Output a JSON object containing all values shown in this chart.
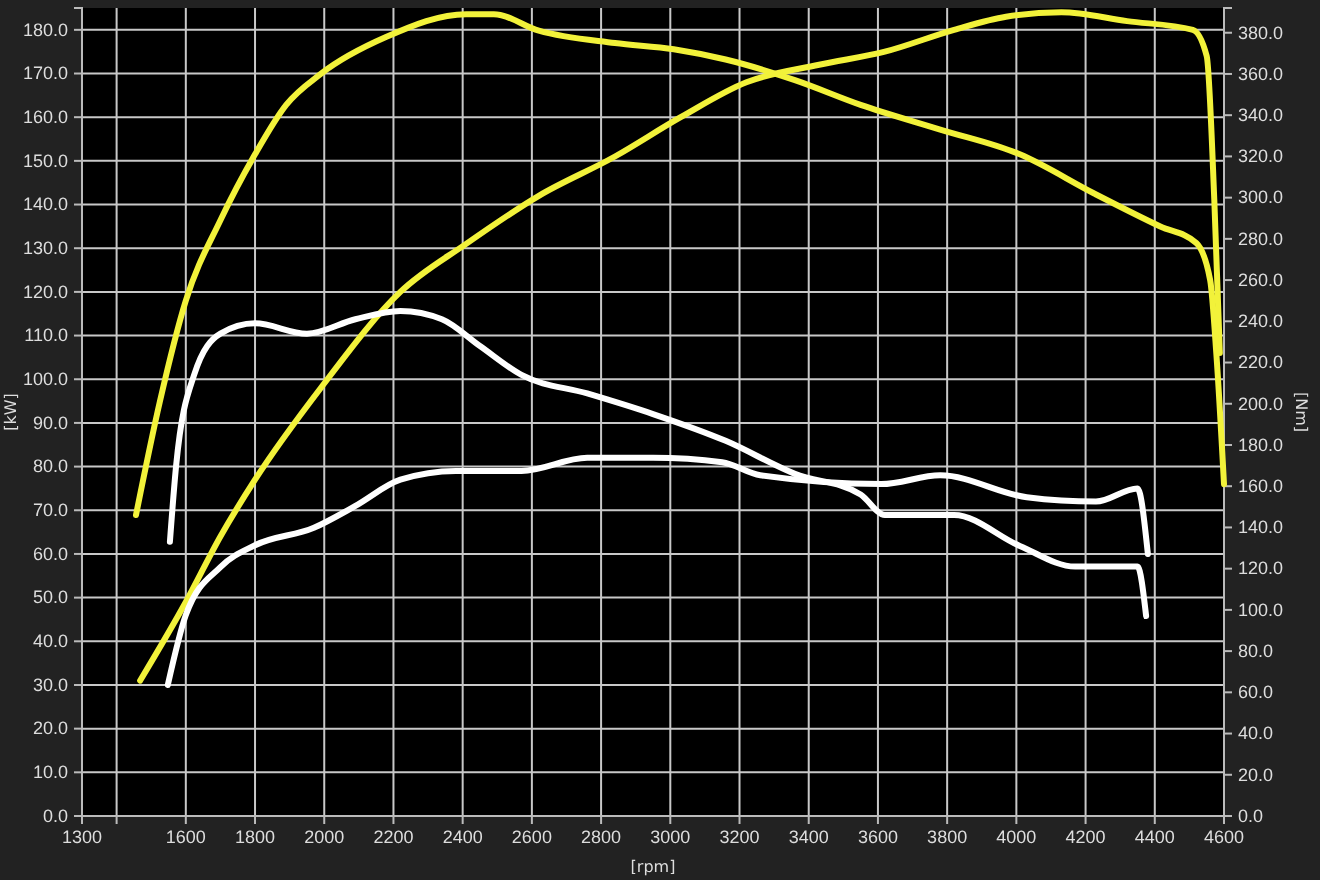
{
  "chart_data": {
    "type": "line",
    "xlabel": "[rpm]",
    "ylabel": "[kW]",
    "y2label": "[Nm]",
    "xlim": [
      1300,
      4600
    ],
    "xticks": [
      1300,
      {
        "value": 1400,
        "label": null
      },
      1600,
      1800,
      2000,
      2200,
      2400,
      2600,
      2800,
      3000,
      3200,
      3400,
      3600,
      3800,
      4000,
      4200,
      4400,
      4600
    ],
    "ylim": [
      0,
      185
    ],
    "yticks": [
      {
        "value": 0,
        "label": "0.0"
      },
      {
        "value": 10,
        "label": "10.0"
      },
      {
        "value": 20,
        "label": "20.0"
      },
      {
        "value": 30,
        "label": "30.0"
      },
      {
        "value": 40,
        "label": "40.0"
      },
      {
        "value": 50,
        "label": "50.0"
      },
      {
        "value": 60,
        "label": "60.0"
      },
      {
        "value": 70,
        "label": "70.0"
      },
      {
        "value": 80,
        "label": "80.0"
      },
      {
        "value": 90,
        "label": "90.0"
      },
      {
        "value": 100,
        "label": "100.0"
      },
      {
        "value": 110,
        "label": "110.0"
      },
      {
        "value": 120,
        "label": "120.0"
      },
      {
        "value": 130,
        "label": "130.0"
      },
      {
        "value": 140,
        "label": "140.0"
      },
      {
        "value": 150,
        "label": "150.0"
      },
      {
        "value": 160,
        "label": "160.0"
      },
      {
        "value": 170,
        "label": "170.0"
      },
      {
        "value": 180,
        "label": "180.0"
      }
    ],
    "y2lim": [
      0,
      392
    ],
    "y2ticks": [
      {
        "value": 0,
        "label": "0.0"
      },
      {
        "value": 20,
        "label": "20.0"
      },
      {
        "value": 40,
        "label": "40.0"
      },
      {
        "value": 60,
        "label": "60.0"
      },
      {
        "value": 80,
        "label": "80.0"
      },
      {
        "value": 100,
        "label": "100.0"
      },
      {
        "value": 120,
        "label": "120.0"
      },
      {
        "value": 140,
        "label": "140.0"
      },
      {
        "value": 160,
        "label": "160.0"
      },
      {
        "value": 180,
        "label": "180.0"
      },
      {
        "value": 200,
        "label": "200.0"
      },
      {
        "value": 220,
        "label": "220.0"
      },
      {
        "value": 240,
        "label": "240.0"
      },
      {
        "value": 260,
        "label": "260.0"
      },
      {
        "value": 280,
        "label": "280.0"
      },
      {
        "value": 300,
        "label": "300.0"
      },
      {
        "value": 320,
        "label": "320.0"
      },
      {
        "value": 340,
        "label": "340.0"
      },
      {
        "value": 360,
        "label": "360.0"
      },
      {
        "value": 380,
        "label": "380.0"
      }
    ],
    "grid": true,
    "series": [
      {
        "color": "#f2f23a",
        "x": [
          1468,
          1600,
          1700,
          1800,
          1990,
          2220,
          2410,
          2620,
          2840,
          3030,
          3220,
          3430,
          3620,
          3820,
          3970,
          4130,
          4320,
          4510,
          4550,
          4572,
          4588
        ],
        "values": [
          31,
          49,
          64,
          77,
          98,
          120,
          131,
          142,
          151,
          160,
          168,
          172,
          175,
          180,
          183,
          184,
          182,
          180,
          174,
          141,
          106
        ]
      },
      {
        "color": "#f2f23a",
        "axis": "y2",
        "x": [
          1456,
          1525,
          1600,
          1700,
          1800,
          1890,
          1990,
          2180,
          2410,
          2490,
          2620,
          2840,
          3010,
          3160,
          3360,
          3550,
          3780,
          4010,
          4225,
          4416,
          4520,
          4560,
          4578,
          4600
        ],
        "values": [
          146,
          201,
          250,
          289,
          321,
          345,
          360,
          378,
          389,
          389,
          381,
          375,
          372,
          367,
          357,
          345,
          333,
          321,
          302,
          286,
          278,
          260,
          224,
          161
        ]
      },
      {
        "color": "#ffffff",
        "x": [
          1548,
          1600,
          1700,
          1800,
          1970,
          2090,
          2220,
          2380,
          2570,
          2760,
          2950,
          3150,
          3260,
          3610,
          3780,
          4030,
          4230,
          4350,
          4380
        ],
        "values": [
          30,
          46,
          57,
          62,
          66,
          71,
          77,
          79,
          79,
          82,
          82,
          81,
          78,
          76,
          78,
          73,
          72,
          75,
          60
        ]
      },
      {
        "color": "#ffffff",
        "axis": "y2",
        "x": [
          1554,
          1572,
          1624,
          1700,
          1800,
          1950,
          2090,
          2220,
          2340,
          2450,
          2570,
          2760,
          2950,
          3160,
          3360,
          3550,
          3620,
          3820,
          4010,
          4170,
          4350,
          4375
        ],
        "values": [
          133,
          170,
          214,
          234,
          239,
          234,
          241,
          245,
          241,
          228,
          214,
          205,
          195,
          182,
          166,
          156,
          146,
          146,
          131,
          121,
          121,
          97
        ]
      }
    ]
  }
}
